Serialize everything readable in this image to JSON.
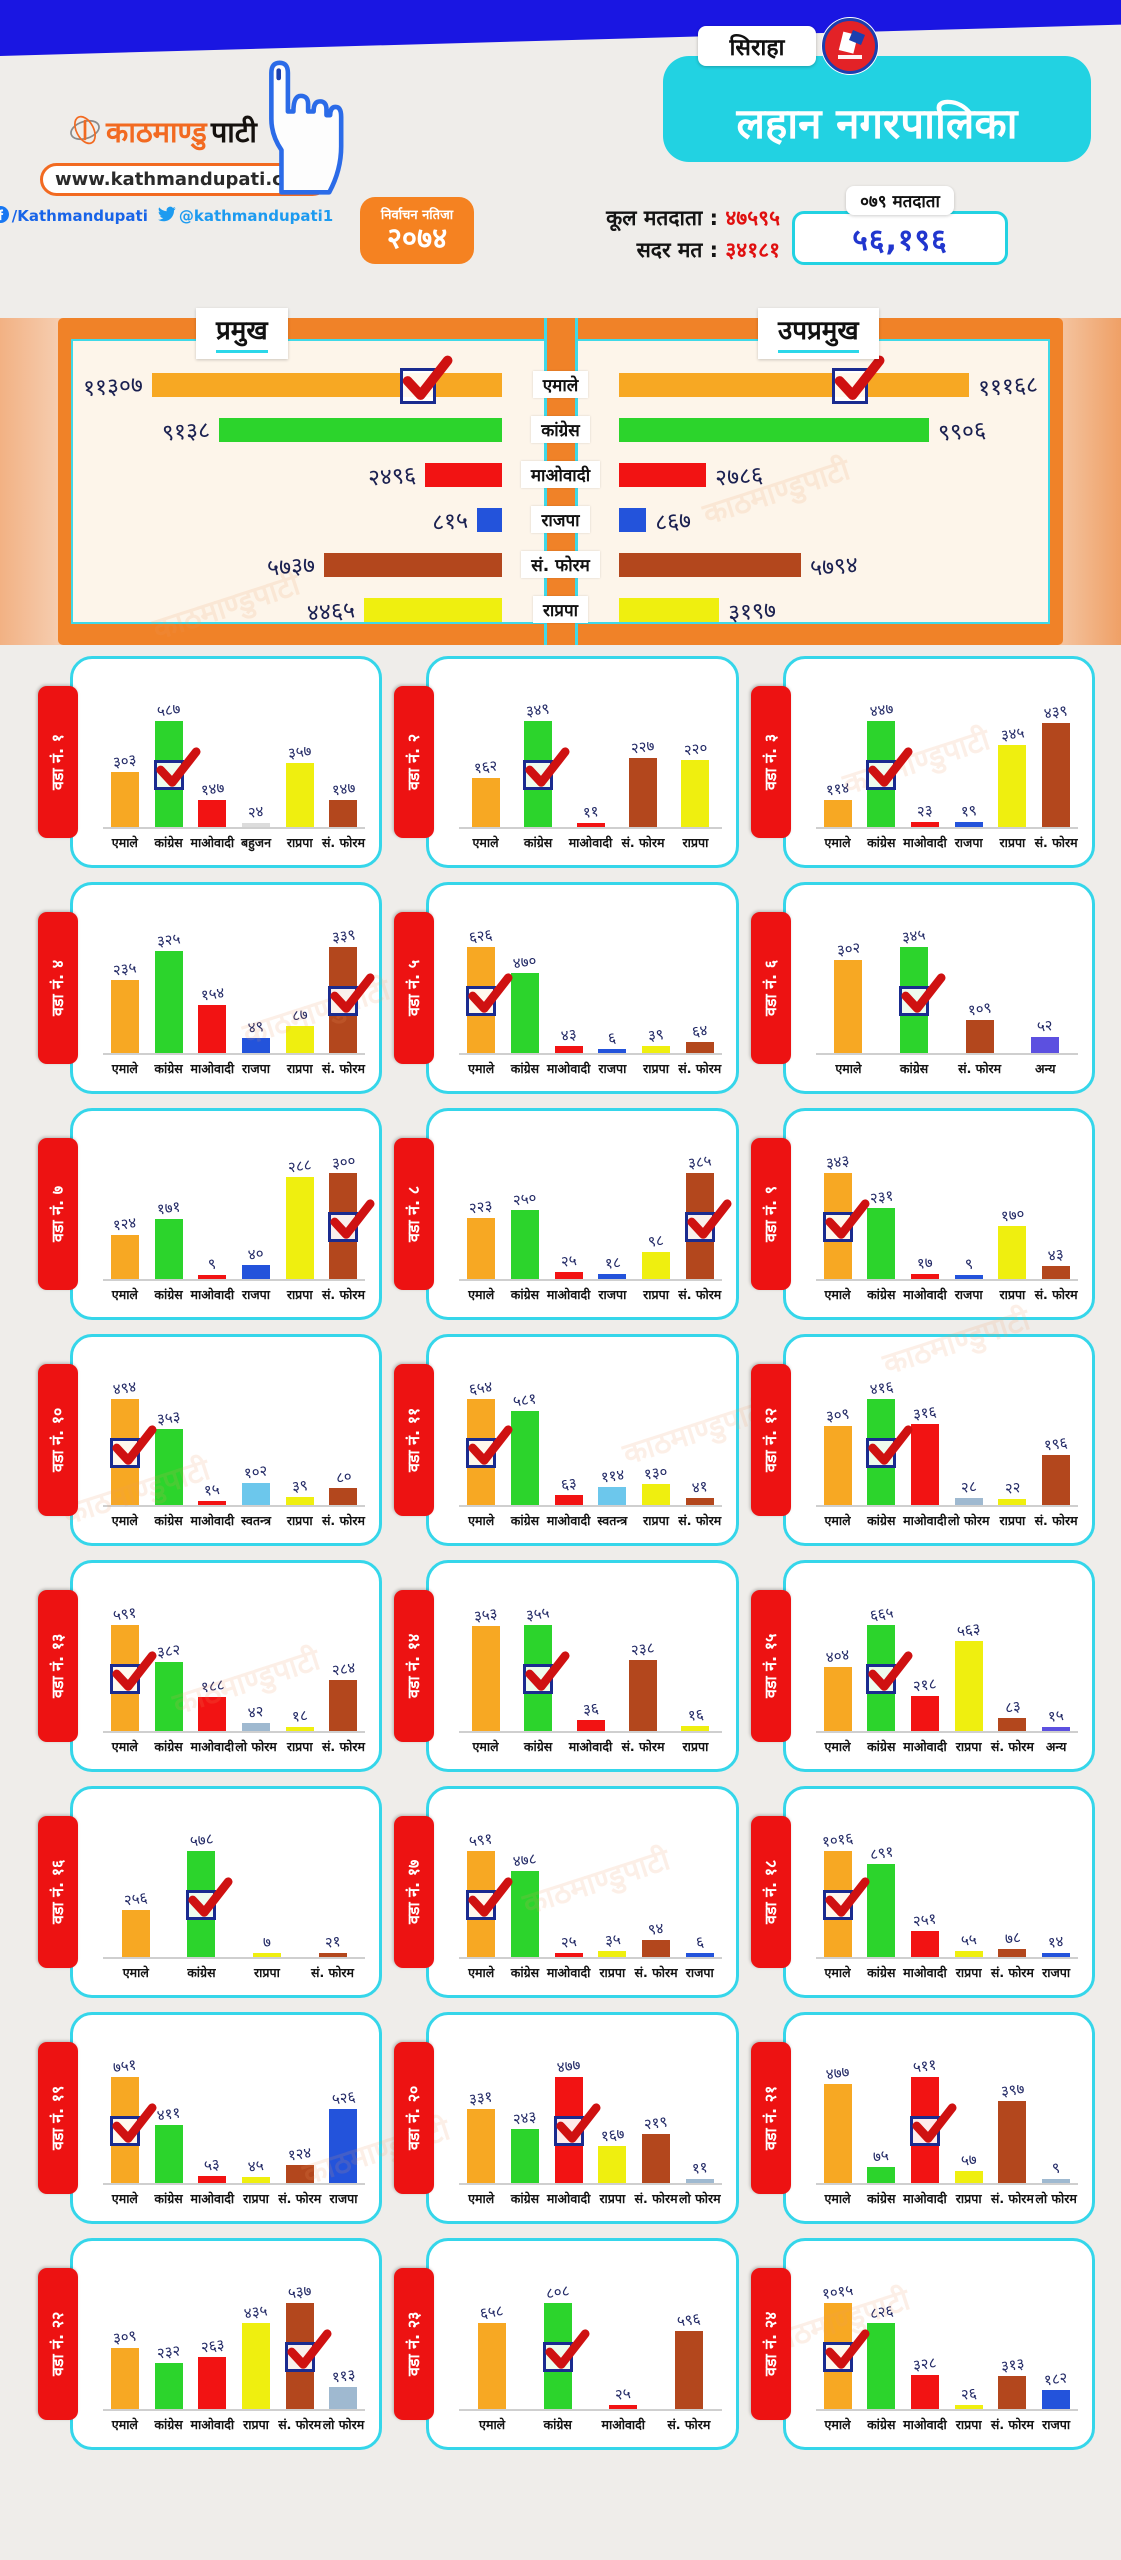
{
  "meta": {
    "watermark": "काठमाण्डुपाटी",
    "accent_cyan": "#22d2e2",
    "frame_orange": "#f08228",
    "tab_red": "#ed1212",
    "check_border": "#1a2b8f",
    "check_red": "#cf1111",
    "topband_blue": "#1a16e2"
  },
  "header": {
    "brand": {
      "logo_orange": "काठमाण्डु",
      "logo_black": "पाटी",
      "website": "www.kathmandupati.com",
      "facebook": "/Kathmandupati",
      "twitter": "@kathmandupati1"
    },
    "district_chip": "सिराहा",
    "municipality": "लहान नगरपालिका",
    "result_badge": {
      "label": "निर्वाचन नतिजा",
      "year": "२०७४"
    },
    "total_voters_label": "कूल मतदाता :",
    "total_voters": "४७५९५",
    "valid_votes_label": "सदर मत :",
    "valid_votes": "३४१८१",
    "voters079_label": "०७९ मतदाता",
    "voters079_value": "५६,१९६"
  },
  "party_colors": {
    "एमाले": "#f7a823",
    "कांग्रेस": "#2cd42c",
    "माओवादी": "#f21313",
    "राजपा": "#2353db",
    "सं. फोरम": "#b3471d",
    "राप्रपा": "#efef0f",
    "बहुजन": "#dcdcdc",
    "स्वतन्त्र": "#6cc7ec",
    "लो फोरम": "#9fb9d0",
    "अन्य": "#5c50e0"
  },
  "chart_data": [
    {
      "id": "mayor",
      "type": "bar",
      "orientation": "horizontal",
      "title": "प्रमुख",
      "categories": [
        "एमाले",
        "कांग्रेस",
        "माओवादी",
        "राजपा",
        "सं. फोरम",
        "राप्रपा"
      ],
      "values": [
        11307,
        9138,
        2496,
        815,
        5737,
        4465
      ],
      "winner_index": 0
    },
    {
      "id": "deputy",
      "type": "bar",
      "orientation": "horizontal",
      "title": "उपप्रमुख",
      "categories": [
        "एमाले",
        "कांग्रेस",
        "माओवादी",
        "राजपा",
        "सं. फोरम",
        "राप्रपा"
      ],
      "values": [
        11168,
        9906,
        2786,
        867,
        5794,
        3197
      ],
      "winner_index": 0
    },
    {
      "id": "ward-1",
      "type": "bar",
      "title": "वडा नं. १",
      "categories": [
        "एमाले",
        "कांग्रेस",
        "माओवादी",
        "बहुजन",
        "राप्रपा",
        "सं. फोरम"
      ],
      "values": [
        303,
        587,
        147,
        24,
        357,
        147
      ],
      "winner_index": 1
    },
    {
      "id": "ward-2",
      "type": "bar",
      "title": "वडा नं. २",
      "categories": [
        "एमाले",
        "कांग्रेस",
        "माओवादी",
        "सं. फोरम",
        "राप्रपा"
      ],
      "values": [
        162,
        349,
        11,
        227,
        220
      ],
      "winner_index": 1
    },
    {
      "id": "ward-3",
      "type": "bar",
      "title": "वडा नं. ३",
      "categories": [
        "एमाले",
        "कांग्रेस",
        "माओवादी",
        "राजपा",
        "राप्रपा",
        "सं. फोरम"
      ],
      "values": [
        114,
        447,
        23,
        19,
        345,
        439
      ],
      "winner_index": 1
    },
    {
      "id": "ward-4",
      "type": "bar",
      "title": "वडा नं. ४",
      "categories": [
        "एमाले",
        "कांग्रेस",
        "माओवादी",
        "राजपा",
        "राप्रपा",
        "सं. फोरम"
      ],
      "values": [
        235,
        325,
        154,
        49,
        87,
        339
      ],
      "winner_index": 5
    },
    {
      "id": "ward-5",
      "type": "bar",
      "title": "वडा नं. ५",
      "categories": [
        "एमाले",
        "कांग्रेस",
        "माओवादी",
        "राजपा",
        "राप्रपा",
        "सं. फोरम"
      ],
      "values": [
        626,
        470,
        43,
        6,
        39,
        64
      ],
      "winner_index": 0
    },
    {
      "id": "ward-6",
      "type": "bar",
      "title": "वडा नं. ६",
      "categories": [
        "एमाले",
        "कांग्रेस",
        "सं. फोरम",
        "अन्य"
      ],
      "values": [
        302,
        345,
        109,
        52
      ],
      "winner_index": 1
    },
    {
      "id": "ward-7",
      "type": "bar",
      "title": "वडा नं. ७",
      "categories": [
        "एमाले",
        "कांग्रेस",
        "माओवादी",
        "राजपा",
        "राप्रपा",
        "सं. फोरम"
      ],
      "values": [
        124,
        171,
        9,
        40,
        288,
        300
      ],
      "winner_index": 5
    },
    {
      "id": "ward-8",
      "type": "bar",
      "title": "वडा नं. ८",
      "categories": [
        "एमाले",
        "कांग्रेस",
        "माओवादी",
        "राजपा",
        "राप्रपा",
        "सं. फोरम"
      ],
      "values": [
        223,
        250,
        25,
        18,
        98,
        385
      ],
      "winner_index": 5
    },
    {
      "id": "ward-9",
      "type": "bar",
      "title": "वडा नं. ९",
      "categories": [
        "एमाले",
        "कांग्रेस",
        "माओवादी",
        "राजपा",
        "राप्रपा",
        "सं. फोरम"
      ],
      "values": [
        343,
        231,
        17,
        9,
        170,
        43
      ],
      "winner_index": 0
    },
    {
      "id": "ward-10",
      "type": "bar",
      "title": "वडा नं. १०",
      "categories": [
        "एमाले",
        "कांग्रेस",
        "माओवादी",
        "स्वतन्त्र",
        "राप्रपा",
        "सं. फोरम"
      ],
      "values": [
        494,
        353,
        15,
        102,
        39,
        80
      ],
      "winner_index": 0
    },
    {
      "id": "ward-11",
      "type": "bar",
      "title": "वडा नं. ११",
      "categories": [
        "एमाले",
        "कांग्रेस",
        "माओवादी",
        "स्वतन्त्र",
        "राप्रपा",
        "सं. फोरम"
      ],
      "values": [
        654,
        581,
        63,
        114,
        130,
        41
      ],
      "winner_index": 0
    },
    {
      "id": "ward-12",
      "type": "bar",
      "title": "वडा नं. १२",
      "categories": [
        "एमाले",
        "कांग्रेस",
        "माओवादी",
        "लो फोरम",
        "राप्रपा",
        "सं. फोरम"
      ],
      "values": [
        309,
        416,
        316,
        28,
        22,
        196
      ],
      "winner_index": 1
    },
    {
      "id": "ward-13",
      "type": "bar",
      "title": "वडा नं. १३",
      "categories": [
        "एमाले",
        "कांग्रेस",
        "माओवादी",
        "लो फोरम",
        "राप्रपा",
        "सं. फोरम"
      ],
      "values": [
        591,
        382,
        188,
        42,
        18,
        284
      ],
      "winner_index": 0
    },
    {
      "id": "ward-14",
      "type": "bar",
      "title": "वडा नं. १४",
      "categories": [
        "एमाले",
        "कांग्रेस",
        "माओवादी",
        "सं. फोरम",
        "राप्रपा"
      ],
      "values": [
        353,
        355,
        36,
        238,
        16
      ],
      "winner_index": 1
    },
    {
      "id": "ward-15",
      "type": "bar",
      "title": "वडा नं. १५",
      "categories": [
        "एमाले",
        "कांग्रेस",
        "माओवादी",
        "राप्रपा",
        "सं. फोरम",
        "अन्य"
      ],
      "values": [
        404,
        665,
        218,
        563,
        83,
        15
      ],
      "winner_index": 1
    },
    {
      "id": "ward-16",
      "type": "bar",
      "title": "वडा नं. १६",
      "categories": [
        "एमाले",
        "कांग्रेस",
        "राप्रपा",
        "सं. फोरम"
      ],
      "values": [
        256,
        578,
        7,
        21
      ],
      "winner_index": 1
    },
    {
      "id": "ward-17",
      "type": "bar",
      "title": "वडा नं. १७",
      "categories": [
        "एमाले",
        "कांग्रेस",
        "माओवादी",
        "राप्रपा",
        "सं. फोरम",
        "राजपा"
      ],
      "values": [
        591,
        478,
        25,
        35,
        94,
        6
      ],
      "winner_index": 0
    },
    {
      "id": "ward-18",
      "type": "bar",
      "title": "वडा नं. १८",
      "categories": [
        "एमाले",
        "कांग्रेस",
        "माओवादी",
        "राप्रपा",
        "सं. फोरम",
        "राजपा"
      ],
      "values": [
        1016,
        891,
        251,
        55,
        78,
        14
      ],
      "winner_index": 0
    },
    {
      "id": "ward-19",
      "type": "bar",
      "title": "वडा नं. १९",
      "categories": [
        "एमाले",
        "कांग्रेस",
        "माओवादी",
        "राप्रपा",
        "सं. फोरम",
        "राजपा"
      ],
      "values": [
        751,
        411,
        53,
        45,
        124,
        526
      ],
      "winner_index": 0
    },
    {
      "id": "ward-20",
      "type": "bar",
      "title": "वडा नं. २०",
      "categories": [
        "एमाले",
        "कांग्रेस",
        "माओवादी",
        "राप्रपा",
        "सं. फोरम",
        "लो फोरम"
      ],
      "values": [
        331,
        243,
        477,
        167,
        219,
        11
      ],
      "winner_index": 2
    },
    {
      "id": "ward-21",
      "type": "bar",
      "title": "वडा नं. २१",
      "categories": [
        "एमाले",
        "कांग्रेस",
        "माओवादी",
        "राप्रपा",
        "सं. फोरम",
        "लो फोरम"
      ],
      "values": [
        477,
        75,
        511,
        57,
        397,
        9
      ],
      "winner_index": 2
    },
    {
      "id": "ward-22",
      "type": "bar",
      "title": "वडा नं. २२",
      "categories": [
        "एमाले",
        "कांग्रेस",
        "माओवादी",
        "राप्रपा",
        "सं. फोरम",
        "लो फोरम"
      ],
      "values": [
        309,
        232,
        263,
        435,
        537,
        113
      ],
      "winner_index": 4
    },
    {
      "id": "ward-23",
      "type": "bar",
      "title": "वडा नं. २३",
      "categories": [
        "एमाले",
        "कांग्रेस",
        "माओवादी",
        "सं. फोरम"
      ],
      "values": [
        658,
        808,
        25,
        596
      ],
      "winner_index": 1
    },
    {
      "id": "ward-24",
      "type": "bar",
      "title": "वडा नं. २४",
      "categories": [
        "एमाले",
        "कांग्रेस",
        "माओवादी",
        "राप्रपा",
        "सं. फोरम",
        "राजपा"
      ],
      "values": [
        1015,
        826,
        328,
        26,
        313,
        182
      ],
      "winner_index": 0
    }
  ]
}
